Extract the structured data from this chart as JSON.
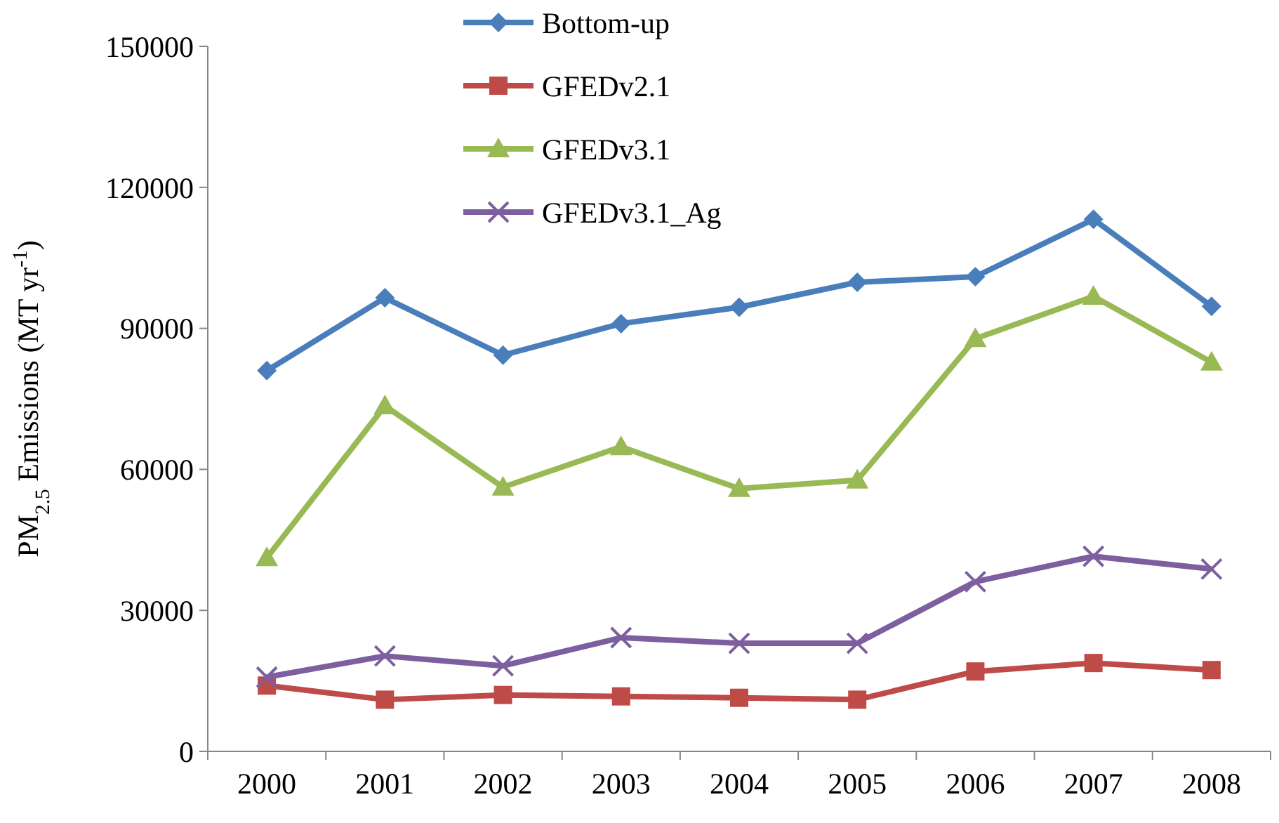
{
  "chart_data": {
    "type": "line",
    "ylabel": "PM$_{2.5}$ Emissions (MT yr$^{-1}$)",
    "categories": [
      "2000",
      "2001",
      "2002",
      "2003",
      "2004",
      "2005",
      "2006",
      "2007",
      "2008"
    ],
    "ylim": [
      0,
      150000
    ],
    "yticks": [
      0,
      30000,
      60000,
      90000,
      120000,
      150000
    ],
    "grid": false,
    "legend": "top",
    "series": [
      {
        "name": "Bottom-up",
        "color": "#4a7ebb",
        "marker": "diamond",
        "values": [
          81000,
          96500,
          84300,
          91000,
          94500,
          99800,
          101000,
          113200,
          94700
        ]
      },
      {
        "name": "GFEDv2.1",
        "color": "#be4b48",
        "marker": "square",
        "values": [
          14000,
          11000,
          12000,
          11700,
          11400,
          11000,
          17000,
          18800,
          17300
        ]
      },
      {
        "name": "GFEDv3.1",
        "color": "#98b954",
        "marker": "triangle",
        "values": [
          41200,
          73500,
          56200,
          64800,
          55900,
          57700,
          87800,
          96800,
          82800
        ]
      },
      {
        "name": "GFEDv3.1_Ag",
        "color": "#7d5fa0",
        "marker": "cross",
        "values": [
          15800,
          20300,
          18200,
          24200,
          23000,
          23000,
          36100,
          41500,
          38800
        ]
      }
    ]
  }
}
